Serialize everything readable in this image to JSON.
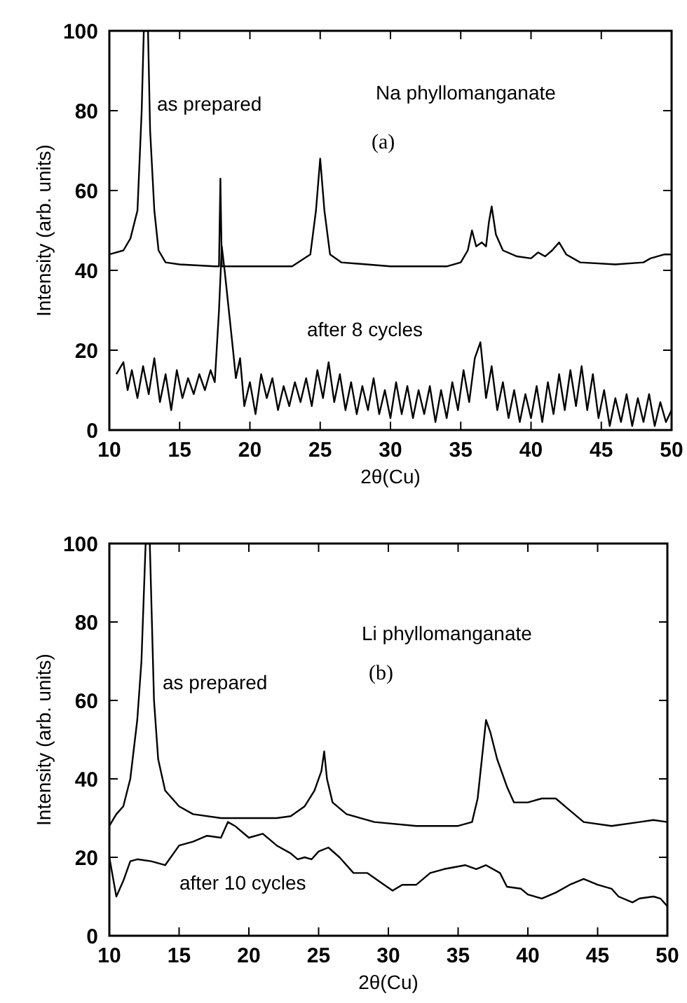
{
  "chart_data": [
    {
      "type": "line",
      "xlabel": "2θ(Cu)",
      "ylabel": "Intensity (arb. units)",
      "xlim": [
        10,
        50
      ],
      "xticks": [
        10,
        15,
        20,
        25,
        30,
        35,
        40,
        45,
        50
      ],
      "ylim": [
        0,
        100
      ],
      "yticks": [
        0,
        20,
        40,
        60,
        80,
        100
      ],
      "grid": false,
      "annotations": [
        "Na phyllomanganate",
        "(a)"
      ],
      "series": [
        {
          "name": "as prepared",
          "color": "#000000",
          "x": [
            10,
            11,
            11.5,
            12,
            12.3,
            12.45,
            12.75,
            12.9,
            13.2,
            13.5,
            14,
            15,
            17.5,
            17.8,
            17.9,
            18,
            20,
            23,
            24.3,
            24.7,
            25,
            25.3,
            25.7,
            26.5,
            30,
            34,
            35,
            35.5,
            35.8,
            36.1,
            36.5,
            36.8,
            37,
            37.2,
            37.5,
            38,
            39,
            40,
            40.5,
            41,
            41.5,
            42,
            42.5,
            43.5,
            46,
            48,
            48.5,
            49.5,
            50
          ],
          "values": [
            44,
            45,
            48,
            55,
            80,
            100,
            100,
            75,
            55,
            45,
            42,
            41.5,
            41,
            41,
            63,
            41,
            41,
            41,
            44,
            55,
            68,
            55,
            44,
            42,
            41,
            41,
            42,
            45,
            50,
            46,
            47,
            46,
            52,
            56,
            49,
            45,
            43.5,
            43,
            44.5,
            43.5,
            45,
            47,
            44,
            42,
            41.5,
            42,
            43,
            44,
            44
          ]
        },
        {
          "name": "after 8 cycles",
          "color": "#000000",
          "x": [
            10.5,
            11,
            11.3,
            11.6,
            12,
            12.4,
            12.8,
            13.2,
            13.6,
            14,
            14.4,
            14.8,
            15.2,
            15.6,
            16,
            16.4,
            16.8,
            17.2,
            17.5,
            17.8,
            18,
            18.2,
            18.5,
            18.8,
            19,
            19.3,
            19.6,
            20,
            20.4,
            20.8,
            21.2,
            21.6,
            22,
            22.4,
            22.8,
            23.2,
            23.6,
            24,
            24.4,
            24.8,
            25.2,
            25.6,
            26,
            26.4,
            26.8,
            27.2,
            27.6,
            28,
            28.4,
            28.8,
            29.2,
            29.6,
            30,
            30.4,
            30.8,
            31.2,
            31.6,
            32,
            32.4,
            32.8,
            33.2,
            33.6,
            34,
            34.4,
            34.8,
            35.2,
            35.6,
            36,
            36.4,
            36.8,
            37.2,
            37.6,
            38,
            38.4,
            38.8,
            39.2,
            39.6,
            40,
            40.4,
            40.8,
            41.2,
            41.6,
            42,
            42.4,
            42.8,
            43.2,
            43.6,
            44,
            44.4,
            44.8,
            45.2,
            45.6,
            46,
            46.4,
            46.8,
            47.2,
            47.6,
            48,
            48.4,
            48.8,
            49.2,
            49.6,
            50
          ],
          "values": [
            14,
            17,
            10,
            15,
            8,
            16,
            9,
            18,
            7,
            14,
            5,
            15,
            8,
            13,
            9,
            14,
            10,
            15,
            12,
            30,
            46,
            40,
            30,
            20,
            13,
            18,
            6,
            12,
            4,
            14,
            8,
            13,
            5,
            11,
            6,
            12,
            7,
            13,
            6,
            15,
            8,
            17,
            7,
            14,
            5,
            12,
            4,
            11,
            5,
            13,
            4,
            10,
            3,
            12,
            4,
            11,
            3,
            10,
            4,
            11,
            2,
            10,
            3,
            12,
            5,
            15,
            7,
            18,
            22,
            8,
            16,
            5,
            12,
            3,
            10,
            2,
            9,
            3,
            11,
            2,
            12,
            4,
            14,
            5,
            15,
            6,
            16,
            5,
            14,
            3,
            10,
            1,
            8,
            2,
            9,
            1,
            8,
            2,
            9,
            1,
            7,
            2,
            5
          ]
        }
      ]
    },
    {
      "type": "line",
      "xlabel": "2θ(Cu)",
      "ylabel": "Intensity (arb. units)",
      "xlim": [
        10,
        50
      ],
      "xticks": [
        10,
        15,
        20,
        25,
        30,
        35,
        40,
        45,
        50
      ],
      "ylim": [
        0,
        100
      ],
      "yticks": [
        0,
        20,
        40,
        60,
        80,
        100
      ],
      "grid": false,
      "annotations": [
        "Li phyllomanganate",
        "(b)"
      ],
      "series": [
        {
          "name": "as prepared",
          "color": "#000000",
          "x": [
            10,
            10.5,
            11,
            11.5,
            12,
            12.3,
            12.6,
            12.9,
            13.2,
            13.5,
            14,
            15,
            16,
            18,
            20,
            22,
            23,
            24,
            24.7,
            25.2,
            25.4,
            25.6,
            26,
            27,
            29,
            32,
            35,
            36,
            36.4,
            36.7,
            37,
            37.3,
            37.8,
            38.5,
            39,
            40,
            41,
            42,
            43,
            44,
            46,
            48,
            49,
            50
          ],
          "values": [
            28,
            31,
            33,
            40,
            55,
            70,
            100,
            100,
            60,
            45,
            37,
            33,
            31,
            30,
            30,
            30,
            30.5,
            33,
            37,
            42,
            47,
            40,
            34,
            31,
            29,
            28,
            28,
            29,
            35,
            45,
            55,
            52,
            45,
            38,
            34,
            34,
            35,
            35,
            32,
            29,
            28,
            29,
            29.5,
            29
          ]
        },
        {
          "name": "after 10 cycles",
          "color": "#000000",
          "x": [
            10,
            10.5,
            11,
            11.5,
            12,
            13,
            14,
            15,
            16,
            17,
            18,
            18.5,
            19,
            20,
            21,
            22,
            23,
            23.5,
            24,
            24.5,
            25,
            25.7,
            26.5,
            27.5,
            28.5,
            29.5,
            30.3,
            31,
            32,
            33,
            34,
            35.5,
            36.3,
            37,
            38,
            38.5,
            39.5,
            40,
            41,
            42,
            43,
            44,
            45,
            46,
            46.5,
            47.5,
            48,
            49,
            49.5,
            50
          ],
          "values": [
            20,
            10,
            14,
            19,
            19.5,
            19,
            18,
            23,
            24,
            25.5,
            25,
            29,
            28,
            25,
            26,
            23,
            21,
            19.5,
            20,
            19.5,
            21.5,
            22.5,
            20,
            16,
            16,
            13.5,
            11.5,
            13,
            13,
            16,
            17,
            18,
            17,
            18,
            16,
            12.5,
            12,
            10.5,
            9.5,
            11,
            13,
            14.5,
            13,
            12,
            10,
            8.5,
            9.5,
            10,
            9.5,
            7.5
          ]
        }
      ]
    }
  ]
}
